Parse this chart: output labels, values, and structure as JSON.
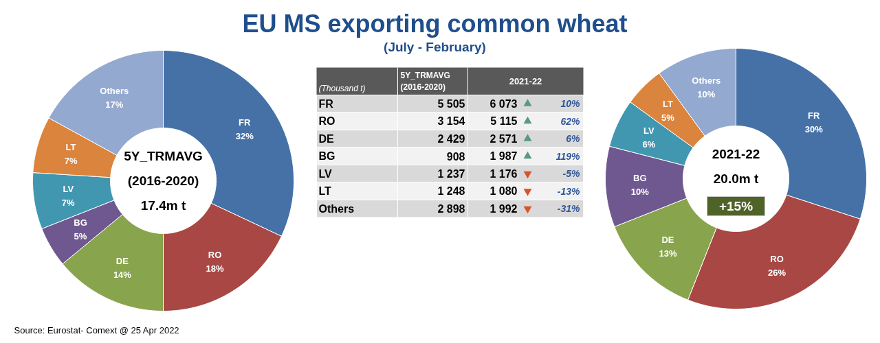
{
  "chart_data": [
    {
      "type": "donut",
      "categories": [
        "FR",
        "RO",
        "DE",
        "BG",
        "LV",
        "LT",
        "Others"
      ],
      "values": [
        32,
        18,
        14,
        5,
        7,
        7,
        17
      ],
      "colors": [
        "#4571a7",
        "#a84744",
        "#88a44c",
        "#6f5890",
        "#4197b0",
        "#db843d",
        "#93a9cf"
      ],
      "value_labels": [
        "32%",
        "18%",
        "14%",
        "5%",
        "7%",
        "7%",
        "17%"
      ],
      "annotations": [
        "5Y_TRMAVG",
        "(2016-2020)",
        "17.4m t"
      ]
    },
    {
      "type": "other",
      "title": "EU MS exporting common wheat",
      "subtitle": "(July - February)",
      "categories": [
        "FR",
        "RO",
        "DE",
        "BG",
        "LV",
        "LT",
        "Others"
      ],
      "series": [
        {
          "name": "5Y_TRMAVG (2016-2020)",
          "colors": [
            "#d9d9d9",
            "#f2f2f2",
            "#d9d9d9",
            "#f2f2f2",
            "#d9d9d9",
            "#f2f2f2",
            "#d9d9d9"
          ],
          "values": [
            5505,
            3154,
            2429,
            908,
            1237,
            1248,
            2898
          ],
          "value_labels": [
            "5 505",
            "3 154",
            "2 429",
            "908",
            "1 237",
            "1 248",
            "2 898"
          ]
        },
        {
          "name": "2021-22",
          "values": [
            6073,
            5115,
            2571,
            1987,
            1176,
            1080,
            1992
          ],
          "value_labels": [
            "6 073",
            "5 115",
            "2 571",
            "1 987",
            "1 176",
            "1 080",
            "1 992"
          ]
        },
        {
          "values": [
            10,
            62,
            6,
            119,
            -5,
            -13,
            -31
          ],
          "value_labels": [
            "10%",
            "62%",
            "6%",
            "119%",
            "-5%",
            "-13%",
            "-31%"
          ]
        }
      ],
      "annotations": [
        "(Thousand t)",
        "Source: Eurostat- Comext @ 25 Apr 2022"
      ]
    },
    {
      "type": "donut",
      "categories": [
        "FR",
        "RO",
        "DE",
        "BG",
        "LV",
        "LT",
        "Others"
      ],
      "values": [
        30,
        26,
        13,
        10,
        6,
        5,
        10
      ],
      "colors": [
        "#4571a7",
        "#a84744",
        "#88a44c",
        "#6f5890",
        "#4197b0",
        "#db843d",
        "#93a9cf"
      ],
      "value_labels": [
        "30%",
        "26%",
        "13%",
        "10%",
        "6%",
        "5%",
        "10%"
      ],
      "annotations": [
        "2021-22",
        "20.0m t",
        "+15%"
      ]
    }
  ]
}
